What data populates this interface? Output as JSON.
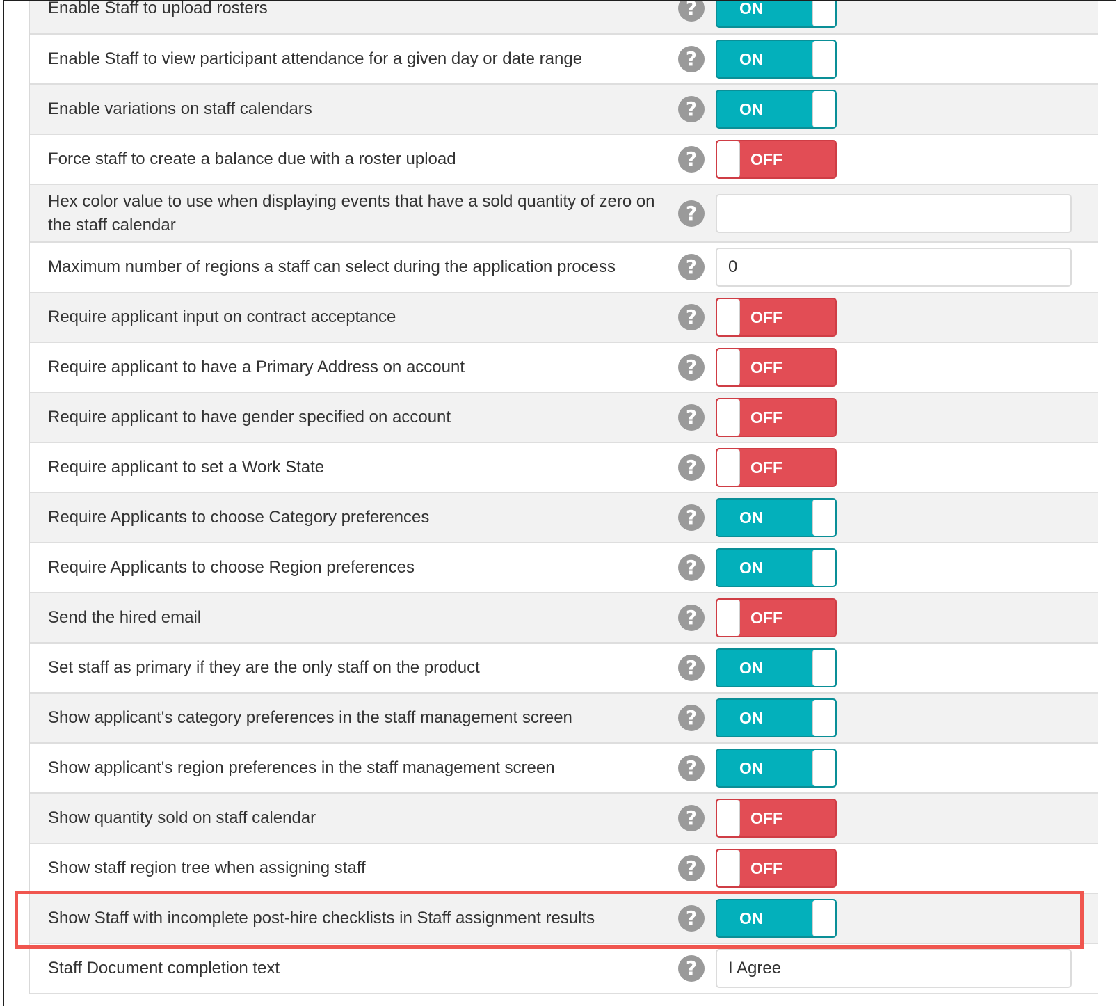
{
  "settings": {
    "rows": [
      {
        "label": "Enable Staff to upload rosters",
        "control": "toggle",
        "state": "on",
        "state_label": "ON"
      },
      {
        "label": "Enable Staff to view participant attendance for a given day or date range",
        "control": "toggle",
        "state": "on",
        "state_label": "ON"
      },
      {
        "label": "Enable variations on staff calendars",
        "control": "toggle",
        "state": "on",
        "state_label": "ON"
      },
      {
        "label": "Force staff to create a balance due with a roster upload",
        "control": "toggle",
        "state": "off",
        "state_label": "OFF"
      },
      {
        "label": "Hex color value to use when displaying events that have a sold quantity of zero on the staff calendar",
        "control": "input",
        "value": ""
      },
      {
        "label": "Maximum number of regions a staff can select during the application process",
        "control": "input",
        "value": "0"
      },
      {
        "label": "Require applicant input on contract acceptance",
        "control": "toggle",
        "state": "off",
        "state_label": "OFF"
      },
      {
        "label": "Require applicant to have a Primary Address on account",
        "control": "toggle",
        "state": "off",
        "state_label": "OFF"
      },
      {
        "label": "Require applicant to have gender specified on account",
        "control": "toggle",
        "state": "off",
        "state_label": "OFF"
      },
      {
        "label": "Require applicant to set a Work State",
        "control": "toggle",
        "state": "off",
        "state_label": "OFF"
      },
      {
        "label": "Require Applicants to choose Category preferences",
        "control": "toggle",
        "state": "on",
        "state_label": "ON"
      },
      {
        "label": "Require Applicants to choose Region preferences",
        "control": "toggle",
        "state": "on",
        "state_label": "ON"
      },
      {
        "label": "Send the hired email",
        "control": "toggle",
        "state": "off",
        "state_label": "OFF"
      },
      {
        "label": "Set staff as primary if they are the only staff on the product",
        "control": "toggle",
        "state": "on",
        "state_label": "ON"
      },
      {
        "label": "Show applicant's category preferences in the staff management screen",
        "control": "toggle",
        "state": "on",
        "state_label": "ON"
      },
      {
        "label": "Show applicant's region preferences in the staff management screen",
        "control": "toggle",
        "state": "on",
        "state_label": "ON"
      },
      {
        "label": "Show quantity sold on staff calendar",
        "control": "toggle",
        "state": "off",
        "state_label": "OFF"
      },
      {
        "label": "Show staff region tree when assigning staff",
        "control": "toggle",
        "state": "off",
        "state_label": "OFF"
      },
      {
        "label": "Show Staff with incomplete post-hire checklists in Staff assignment results",
        "control": "toggle",
        "state": "on",
        "state_label": "ON",
        "highlighted": true
      },
      {
        "label": "Staff Document completion text",
        "control": "input",
        "value": "I Agree"
      }
    ]
  },
  "help_icon_glyph": "?",
  "colors": {
    "toggle_on": "#03b0bb",
    "toggle_off": "#e24d55",
    "highlight": "#f0564f",
    "row_shade": "#f2f2f2"
  }
}
